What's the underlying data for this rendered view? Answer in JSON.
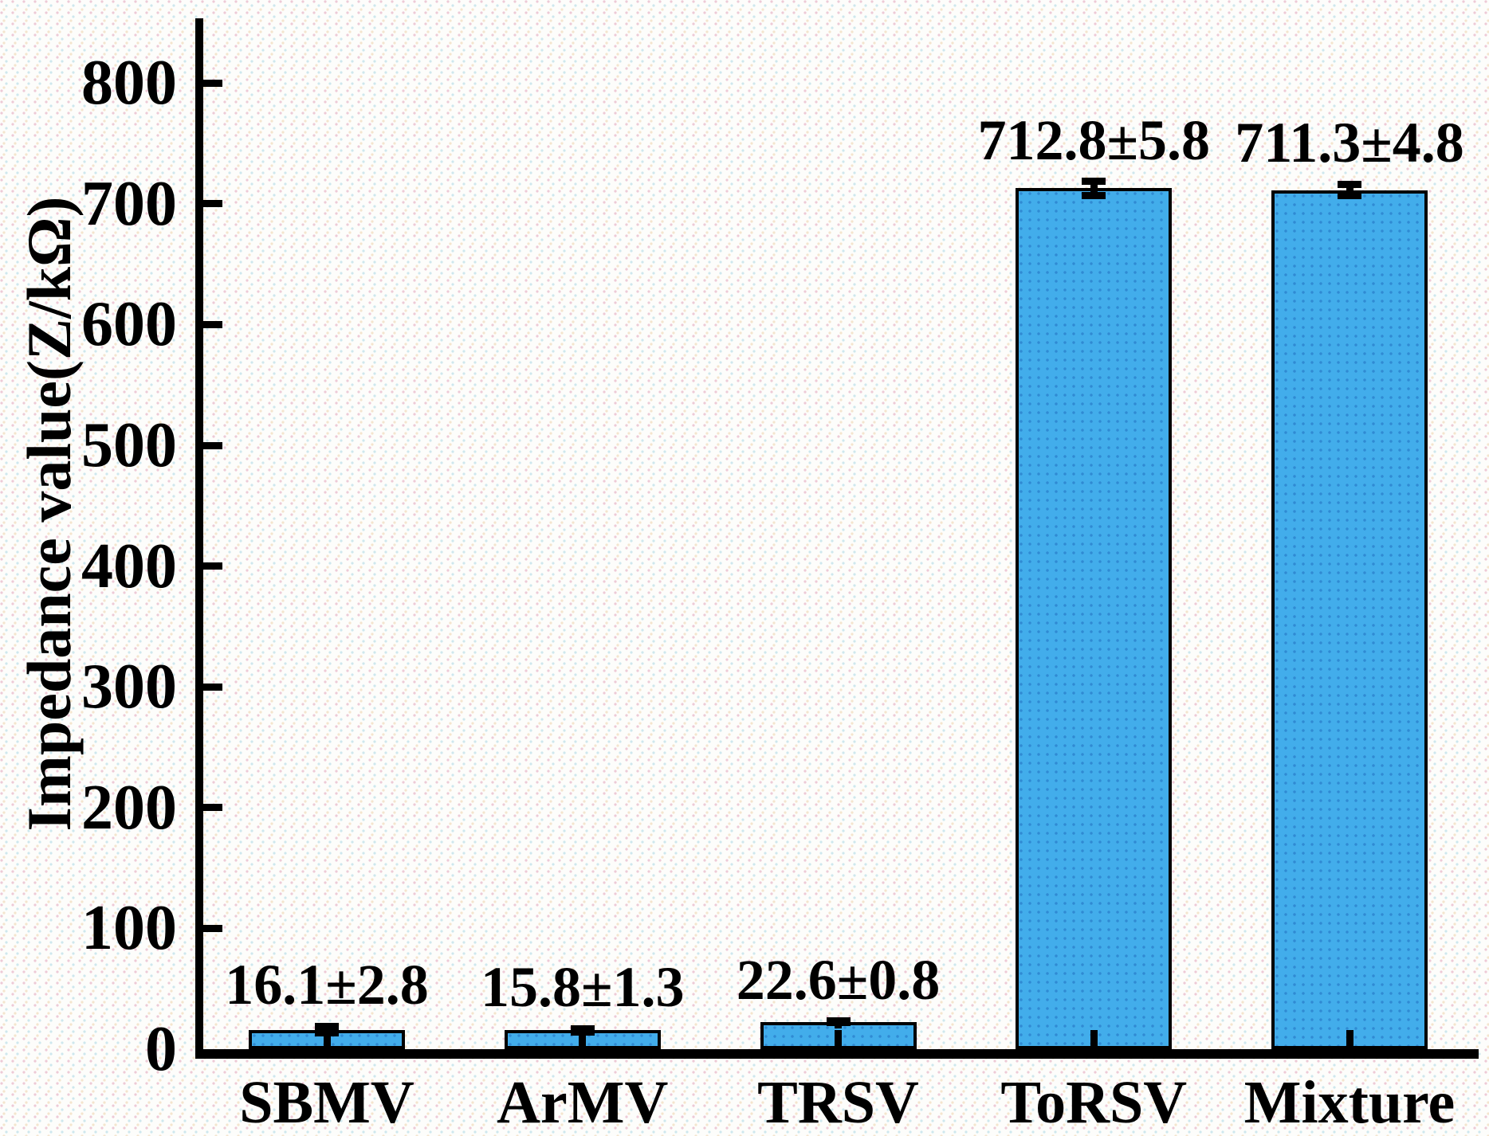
{
  "chart_data": {
    "type": "bar",
    "title": "",
    "xlabel": "",
    "ylabel": "Impedance value(Z/kΩ)",
    "categories": [
      "SBMV",
      "ArMV",
      "TRSV",
      "ToRSV",
      "Mixture"
    ],
    "values": [
      16.1,
      15.8,
      22.6,
      712.8,
      711.3
    ],
    "errors": [
      2.8,
      1.3,
      0.8,
      5.8,
      4.8
    ],
    "data_labels": [
      "16.1±2.8",
      "15.8±1.3",
      "22.6±0.8",
      "712.8±5.8",
      "711.3±4.8"
    ],
    "yticks": [
      0,
      100,
      200,
      300,
      400,
      500,
      600,
      700,
      800
    ],
    "ylim": [
      0,
      853
    ],
    "grid": false,
    "legend_position": "none",
    "bar_color": "#42adeb",
    "axis_color": "#000000",
    "text_color": "#000000"
  }
}
